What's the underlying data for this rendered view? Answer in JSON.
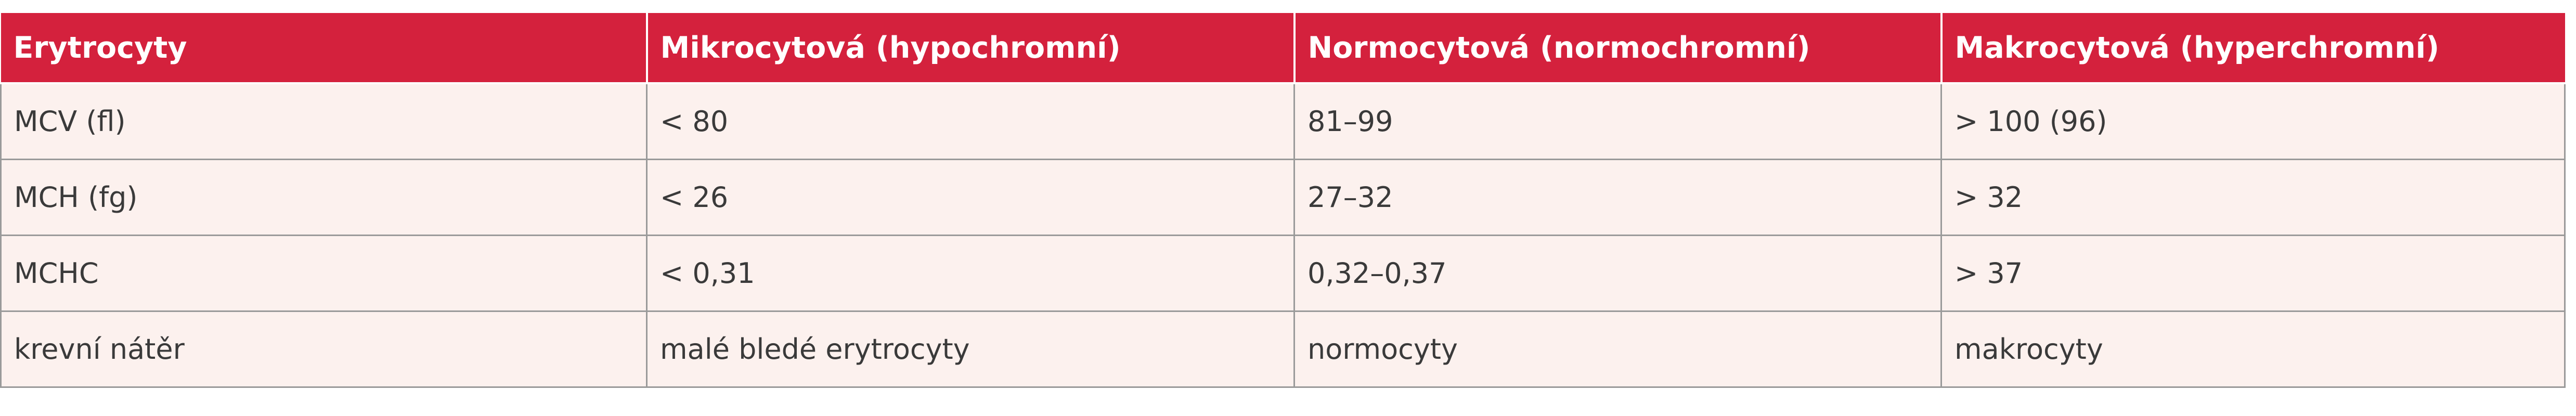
{
  "table": {
    "header": [
      "Erytrocyty",
      "Mikrocytová (hypochromní)",
      "Normocytová (normochromní)",
      "Makrocytová (hyperchromní)"
    ],
    "rows": [
      [
        "MCV (fl)",
        "< 80",
        "81–99",
        "> 100 (96)"
      ],
      [
        "MCH (fg)",
        "< 26",
        "27–32",
        "> 32"
      ],
      [
        "MCHC",
        "< 0,31",
        "0,32–0,37",
        "> 37"
      ],
      [
        "krevní nátěr",
        "malé bledé erytrocyty",
        "normocyty",
        "makrocyty"
      ]
    ]
  }
}
